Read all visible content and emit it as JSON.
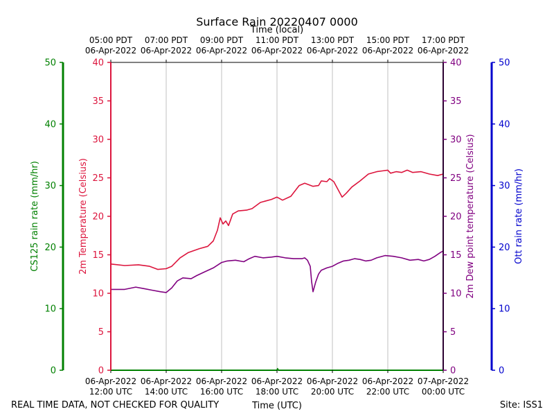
{
  "chart_data": {
    "type": "line",
    "title": "Surface Rain 20220407 0000",
    "top_axis_label": "Time (local)",
    "bottom_axis_label": "Time (UTC)",
    "footer_left": "REAL TIME DATA, NOT CHECKED FOR QUALITY",
    "footer_right": "Site: ISS1",
    "x_range_hours": [
      0,
      12
    ],
    "x_ticks": [
      {
        "h": 0,
        "local": [
          "05:00 PDT",
          "06-Apr-2022"
        ],
        "utc": [
          "06-Apr-2022",
          "12:00 UTC"
        ]
      },
      {
        "h": 2,
        "local": [
          "07:00 PDT",
          "06-Apr-2022"
        ],
        "utc": [
          "06-Apr-2022",
          "14:00 UTC"
        ]
      },
      {
        "h": 4,
        "local": [
          "09:00 PDT",
          "06-Apr-2022"
        ],
        "utc": [
          "06-Apr-2022",
          "16:00 UTC"
        ]
      },
      {
        "h": 6,
        "local": [
          "11:00 PDT",
          "06-Apr-2022"
        ],
        "utc": [
          "06-Apr-2022",
          "18:00 UTC"
        ]
      },
      {
        "h": 8,
        "local": [
          "13:00 PDT",
          "06-Apr-2022"
        ],
        "utc": [
          "06-Apr-2022",
          "20:00 UTC"
        ]
      },
      {
        "h": 10,
        "local": [
          "15:00 PDT",
          "06-Apr-2022"
        ],
        "utc": [
          "06-Apr-2022",
          "22:00 UTC"
        ]
      },
      {
        "h": 12,
        "local": [
          "17:00 PDT",
          "06-Apr-2022"
        ],
        "utc": [
          "07-Apr-2022",
          "00:00 UTC"
        ]
      }
    ],
    "axes": {
      "cs125": {
        "label": "CS125 rain rate (mm/hr)",
        "ylim": [
          0,
          50
        ],
        "ticks": [
          0,
          10,
          20,
          30,
          40,
          50
        ],
        "color": "#008000"
      },
      "temp": {
        "label": "2m Temperature (Celsius)",
        "ylim": [
          0,
          40
        ],
        "ticks": [
          0,
          5,
          10,
          15,
          20,
          25,
          30,
          35,
          40
        ],
        "color": "#dc143c"
      },
      "dew": {
        "label": "2m Dew point temperature (Celsius)",
        "ylim": [
          0,
          40
        ],
        "ticks": [
          0,
          5,
          10,
          15,
          20,
          25,
          30,
          35,
          40
        ],
        "color": "#800080"
      },
      "ott": {
        "label": "Ott rain rate (mm/hr)",
        "ylim": [
          0,
          50
        ],
        "ticks": [
          0,
          10,
          20,
          30,
          40,
          50
        ],
        "color": "#0000cd"
      }
    },
    "series": [
      {
        "name": "2m Temperature",
        "axis": "temp",
        "color": "#dc143c",
        "points": [
          [
            0,
            13.8
          ],
          [
            0.5,
            13.6
          ],
          [
            1,
            13.7
          ],
          [
            1.4,
            13.5
          ],
          [
            1.7,
            13.1
          ],
          [
            2,
            13.2
          ],
          [
            2.2,
            13.5
          ],
          [
            2.5,
            14.6
          ],
          [
            2.8,
            15.3
          ],
          [
            3.2,
            15.8
          ],
          [
            3.5,
            16.1
          ],
          [
            3.7,
            16.8
          ],
          [
            3.85,
            18.2
          ],
          [
            3.95,
            19.8
          ],
          [
            4.05,
            19.0
          ],
          [
            4.15,
            19.4
          ],
          [
            4.25,
            18.8
          ],
          [
            4.4,
            20.3
          ],
          [
            4.6,
            20.7
          ],
          [
            4.9,
            20.8
          ],
          [
            5.1,
            21.0
          ],
          [
            5.4,
            21.8
          ],
          [
            5.8,
            22.2
          ],
          [
            6,
            22.5
          ],
          [
            6.2,
            22.1
          ],
          [
            6.5,
            22.6
          ],
          [
            6.8,
            24.0
          ],
          [
            7,
            24.3
          ],
          [
            7.3,
            23.9
          ],
          [
            7.5,
            24.0
          ],
          [
            7.6,
            24.6
          ],
          [
            7.8,
            24.5
          ],
          [
            7.9,
            24.9
          ],
          [
            8.05,
            24.5
          ],
          [
            8.2,
            23.5
          ],
          [
            8.35,
            22.5
          ],
          [
            8.5,
            23.0
          ],
          [
            8.7,
            23.8
          ],
          [
            9,
            24.6
          ],
          [
            9.3,
            25.5
          ],
          [
            9.6,
            25.8
          ],
          [
            9.8,
            25.9
          ],
          [
            10,
            26.0
          ],
          [
            10.1,
            25.6
          ],
          [
            10.3,
            25.8
          ],
          [
            10.5,
            25.7
          ],
          [
            10.7,
            26.0
          ],
          [
            10.9,
            25.7
          ],
          [
            11.2,
            25.8
          ],
          [
            11.5,
            25.5
          ],
          [
            11.8,
            25.3
          ],
          [
            12,
            25.5
          ]
        ]
      },
      {
        "name": "2m Dew point temperature",
        "axis": "dew",
        "color": "#800080",
        "points": [
          [
            0,
            10.5
          ],
          [
            0.5,
            10.5
          ],
          [
            0.9,
            10.8
          ],
          [
            1.2,
            10.6
          ],
          [
            1.5,
            10.4
          ],
          [
            1.8,
            10.2
          ],
          [
            2,
            10.1
          ],
          [
            2.2,
            10.7
          ],
          [
            2.4,
            11.6
          ],
          [
            2.6,
            12.0
          ],
          [
            2.9,
            11.9
          ],
          [
            3.1,
            12.3
          ],
          [
            3.4,
            12.8
          ],
          [
            3.7,
            13.3
          ],
          [
            4,
            14.0
          ],
          [
            4.2,
            14.2
          ],
          [
            4.5,
            14.3
          ],
          [
            4.8,
            14.1
          ],
          [
            5,
            14.5
          ],
          [
            5.2,
            14.8
          ],
          [
            5.5,
            14.6
          ],
          [
            5.8,
            14.7
          ],
          [
            6,
            14.8
          ],
          [
            6.3,
            14.6
          ],
          [
            6.6,
            14.5
          ],
          [
            6.9,
            14.5
          ],
          [
            7,
            14.6
          ],
          [
            7.1,
            14.3
          ],
          [
            7.2,
            13.5
          ],
          [
            7.25,
            11.5
          ],
          [
            7.3,
            10.2
          ],
          [
            7.4,
            11.5
          ],
          [
            7.5,
            12.5
          ],
          [
            7.6,
            13.0
          ],
          [
            7.8,
            13.3
          ],
          [
            8,
            13.5
          ],
          [
            8.2,
            13.9
          ],
          [
            8.4,
            14.2
          ],
          [
            8.6,
            14.3
          ],
          [
            8.8,
            14.5
          ],
          [
            9,
            14.4
          ],
          [
            9.2,
            14.2
          ],
          [
            9.4,
            14.3
          ],
          [
            9.6,
            14.6
          ],
          [
            9.9,
            14.9
          ],
          [
            10.2,
            14.8
          ],
          [
            10.5,
            14.6
          ],
          [
            10.8,
            14.3
          ],
          [
            11.1,
            14.4
          ],
          [
            11.3,
            14.2
          ],
          [
            11.5,
            14.4
          ],
          [
            11.7,
            14.8
          ],
          [
            11.9,
            15.3
          ],
          [
            12,
            15.5
          ]
        ]
      },
      {
        "name": "CS125 rain rate",
        "axis": "cs125",
        "color": "#008000",
        "points": [
          [
            0,
            0.0
          ],
          [
            6,
            0.0
          ],
          [
            6.02,
            0.25
          ],
          [
            6.05,
            0.0
          ],
          [
            12,
            0.0
          ]
        ]
      }
    ]
  }
}
